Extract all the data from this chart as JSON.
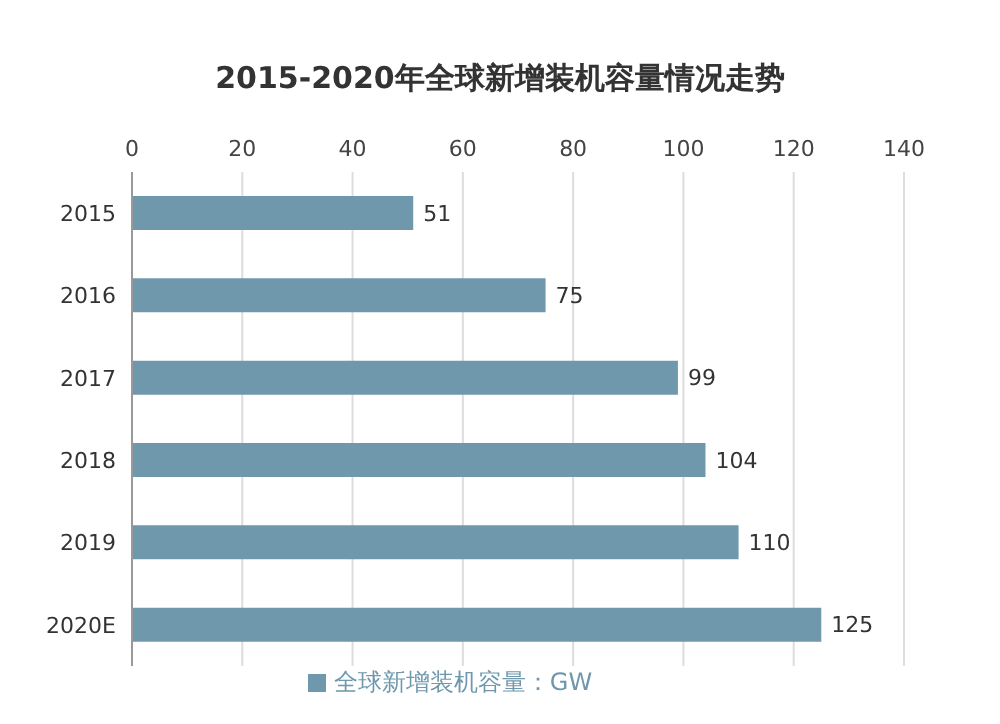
{
  "chart_data": {
    "type": "bar",
    "orientation": "horizontal",
    "title": "2015-2020年全球新增装机容量情况走势",
    "categories": [
      "2015",
      "2016",
      "2017",
      "2018",
      "2019",
      "2020E"
    ],
    "series": [
      {
        "name": "全球新增装机容量：GW",
        "color": "#6f98ad",
        "values": [
          51,
          75,
          99,
          104,
          110,
          125
        ]
      }
    ],
    "xlim": [
      0,
      140
    ],
    "xticks": [
      0,
      20,
      40,
      60,
      80,
      100,
      120,
      140
    ],
    "grid": "x",
    "legend": "bottom",
    "data_labels": true
  }
}
